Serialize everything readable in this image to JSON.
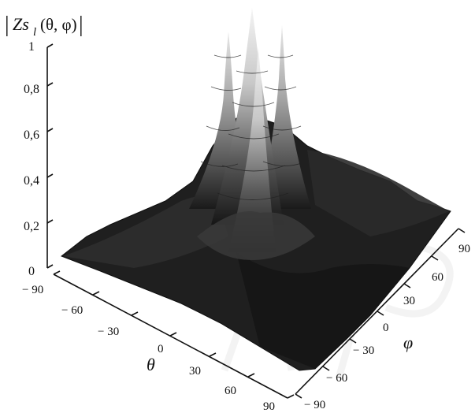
{
  "chart_data": {
    "type": "surface3d",
    "z_label_parts": {
      "bar_left": "|",
      "name": "Zs",
      "subscript": "l",
      "args": "(θ, φ)",
      "bar_right": "|"
    },
    "x_axis": {
      "label": "θ",
      "range": [
        -90,
        90
      ],
      "ticks": [
        "− 90",
        "− 60",
        "− 30",
        "0",
        "30",
        "60",
        "90"
      ]
    },
    "y_axis": {
      "label": "φ",
      "range": [
        -90,
        90
      ],
      "ticks": [
        "− 90",
        "− 60",
        "− 30",
        "0",
        "30",
        "60",
        "90"
      ]
    },
    "z_axis": {
      "range": [
        0,
        1
      ],
      "ticks": [
        "0",
        "0,2",
        "0,4",
        "0,6",
        "0,8",
        "1"
      ]
    },
    "peaks": [
      {
        "theta": -5,
        "phi": 5,
        "value": 1.0
      },
      {
        "theta": -20,
        "phi": 0,
        "value": 0.95
      },
      {
        "theta": 5,
        "phi": -10,
        "value": 0.92
      },
      {
        "theta": 15,
        "phi": 10,
        "value": 0.88
      }
    ],
    "background_level": 0.1,
    "colormap": "grayscale",
    "contour_step": 0.1,
    "watermark": "MP"
  }
}
